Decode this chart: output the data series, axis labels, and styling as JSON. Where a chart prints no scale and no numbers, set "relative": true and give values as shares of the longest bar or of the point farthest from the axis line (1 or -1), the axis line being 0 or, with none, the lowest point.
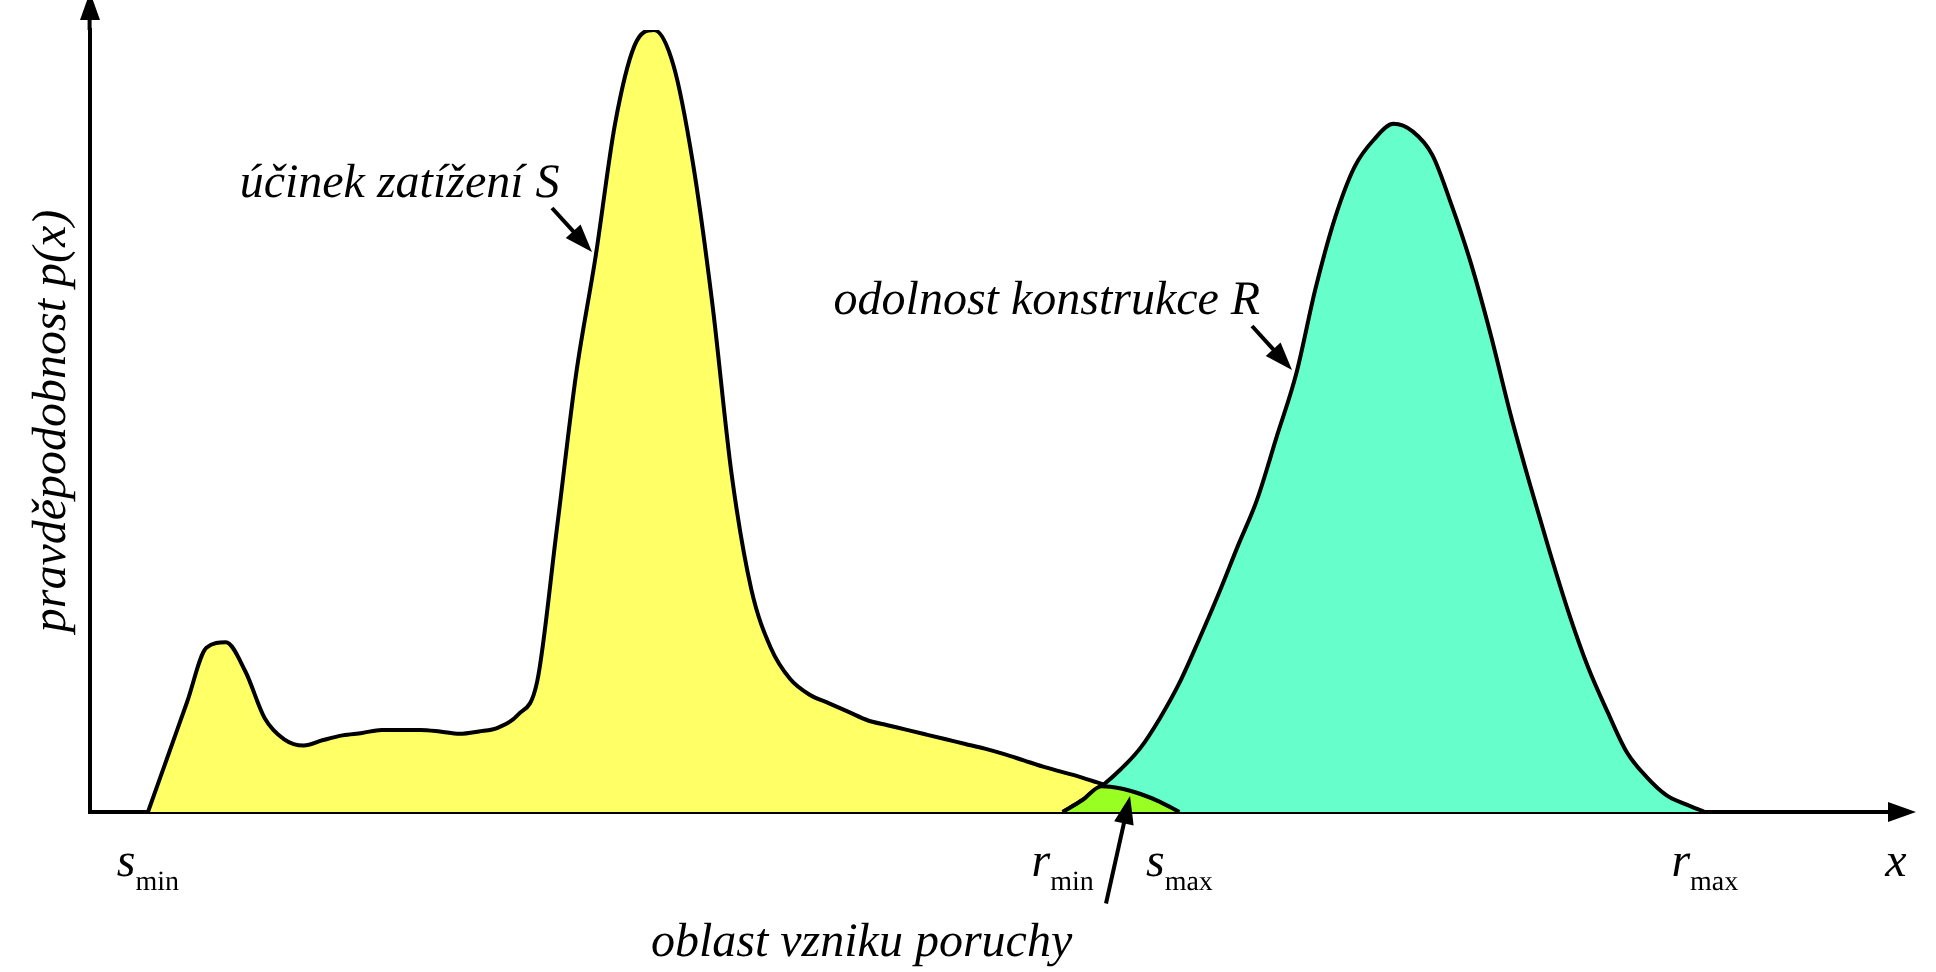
{
  "chart_data": {
    "type": "area",
    "relative": true,
    "xlabel": "x",
    "ylabel": "pravděpodobnost p(x)",
    "categories": [
      null,
      null,
      null,
      "s$_{min}$",
      null,
      null,
      null,
      null,
      null,
      null,
      null,
      null,
      null,
      null,
      null,
      null,
      null,
      null,
      null,
      null,
      null,
      null,
      null,
      null,
      null,
      null,
      null,
      null,
      null,
      null,
      null,
      null,
      null,
      null,
      null,
      null,
      null,
      null,
      null,
      null,
      null,
      null,
      null,
      null,
      null,
      null,
      null,
      null,
      null,
      null,
      "r$_{min}$",
      null,
      null,
      null,
      null,
      null,
      "s$_{max}$",
      null,
      null,
      null,
      null,
      null,
      null,
      null,
      null,
      null,
      null,
      null,
      null,
      null,
      null,
      null,
      null,
      null,
      null,
      null,
      null,
      null,
      null,
      null,
      null,
      null,
      null,
      "r$_{max}$",
      null,
      null,
      null,
      null,
      null,
      null,
      null,
      null,
      null
    ],
    "tick_labels": "x",
    "grid": false,
    "legend": false,
    "series": [
      {
        "name": "účinek zatížení S",
        "color": "#ffff66",
        "values": [
          null,
          null,
          null,
          0,
          0.07,
          0.14,
          0.21,
          0.217,
          0.18,
          0.12,
          0.093,
          0.085,
          0.092,
          0.098,
          0.101,
          0.105,
          0.105,
          0.105,
          0.103,
          0.1,
          0.103,
          0.108,
          0.124,
          0.167,
          0.36,
          0.56,
          0.71,
          0.88,
          0.98,
          1,
          0.955,
          0.83,
          0.65,
          0.43,
          0.285,
          0.21,
          0.17,
          0.15,
          0.139,
          0.128,
          0.117,
          0.111,
          0.105,
          0.099,
          0.093,
          0.087,
          0.081,
          0.074,
          0.066,
          0.058,
          0.051,
          0.044,
          0.036,
          0.03,
          0.023,
          0.013,
          0,
          null,
          null,
          null,
          null,
          null,
          null,
          null,
          null,
          null,
          null,
          null,
          null,
          null,
          null,
          null,
          null,
          null,
          null,
          null,
          null,
          null,
          null,
          null,
          null,
          null,
          null,
          null,
          null,
          null,
          null,
          null,
          null,
          null,
          null,
          null,
          null
        ]
      },
      {
        "name": "odolnost konstrukce R",
        "color": "#66ffcc",
        "values": [
          null,
          null,
          null,
          null,
          null,
          null,
          null,
          null,
          null,
          null,
          null,
          null,
          null,
          null,
          null,
          null,
          null,
          null,
          null,
          null,
          null,
          null,
          null,
          null,
          null,
          null,
          null,
          null,
          null,
          null,
          null,
          null,
          null,
          null,
          null,
          null,
          null,
          null,
          null,
          null,
          null,
          null,
          null,
          null,
          null,
          null,
          null,
          null,
          null,
          null,
          0,
          0.015,
          0.033,
          0.055,
          0.082,
          0.12,
          0.165,
          0.22,
          0.278,
          0.34,
          0.4,
          0.48,
          0.56,
          0.67,
          0.76,
          0.825,
          0.86,
          0.88,
          0.87,
          0.84,
          0.775,
          0.7,
          0.61,
          0.51,
          0.42,
          0.335,
          0.255,
          0.185,
          0.128,
          0.076,
          0.045,
          0.022,
          0.01,
          0,
          null,
          null,
          null,
          null,
          null,
          null,
          null,
          null,
          null
        ]
      },
      {
        "color": "#99ff22",
        "values": [
          null,
          null,
          null,
          null,
          null,
          null,
          null,
          null,
          null,
          null,
          null,
          null,
          null,
          null,
          null,
          null,
          null,
          null,
          null,
          null,
          null,
          null,
          null,
          null,
          null,
          null,
          null,
          null,
          null,
          null,
          null,
          null,
          null,
          null,
          null,
          null,
          null,
          null,
          null,
          null,
          null,
          null,
          null,
          null,
          null,
          null,
          null,
          null,
          null,
          null,
          0,
          0.015,
          0.033,
          0.03,
          0.023,
          0.013,
          0,
          null,
          null,
          null,
          null,
          null,
          null,
          null,
          null,
          null,
          null,
          null,
          null,
          null,
          null,
          null,
          null,
          null,
          null,
          null,
          null,
          null,
          null,
          null,
          null,
          null,
          null,
          null,
          null,
          null,
          null,
          null,
          null,
          null,
          null,
          null,
          null
        ]
      }
    ],
    "annotations": [
      "oblast vzniku poruchy"
    ]
  }
}
